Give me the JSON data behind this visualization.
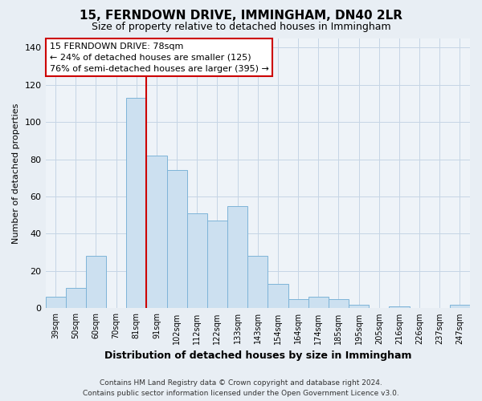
{
  "title": "15, FERNDOWN DRIVE, IMMINGHAM, DN40 2LR",
  "subtitle": "Size of property relative to detached houses in Immingham",
  "xlabel": "Distribution of detached houses by size in Immingham",
  "ylabel": "Number of detached properties",
  "bar_labels": [
    "39sqm",
    "50sqm",
    "60sqm",
    "70sqm",
    "81sqm",
    "91sqm",
    "102sqm",
    "112sqm",
    "122sqm",
    "133sqm",
    "143sqm",
    "154sqm",
    "164sqm",
    "174sqm",
    "185sqm",
    "195sqm",
    "205sqm",
    "216sqm",
    "226sqm",
    "237sqm",
    "247sqm"
  ],
  "bar_heights": [
    6,
    11,
    28,
    0,
    113,
    82,
    74,
    51,
    47,
    55,
    28,
    13,
    5,
    6,
    5,
    2,
    0,
    1,
    0,
    0,
    2
  ],
  "bar_color": "#cce0f0",
  "bar_edge_color": "#7eb4d8",
  "vline_index": 4,
  "vline_color": "#cc0000",
  "ylim": [
    0,
    145
  ],
  "yticks": [
    0,
    20,
    40,
    60,
    80,
    100,
    120,
    140
  ],
  "annotation_title": "15 FERNDOWN DRIVE: 78sqm",
  "annotation_line1": "← 24% of detached houses are smaller (125)",
  "annotation_line2": "76% of semi-detached houses are larger (395) →",
  "footer_line1": "Contains HM Land Registry data © Crown copyright and database right 2024.",
  "footer_line2": "Contains public sector information licensed under the Open Government Licence v3.0.",
  "background_color": "#e8eef4",
  "plot_bg_color": "#eef3f8",
  "grid_color": "#c5d5e5",
  "title_fontsize": 11,
  "subtitle_fontsize": 9
}
